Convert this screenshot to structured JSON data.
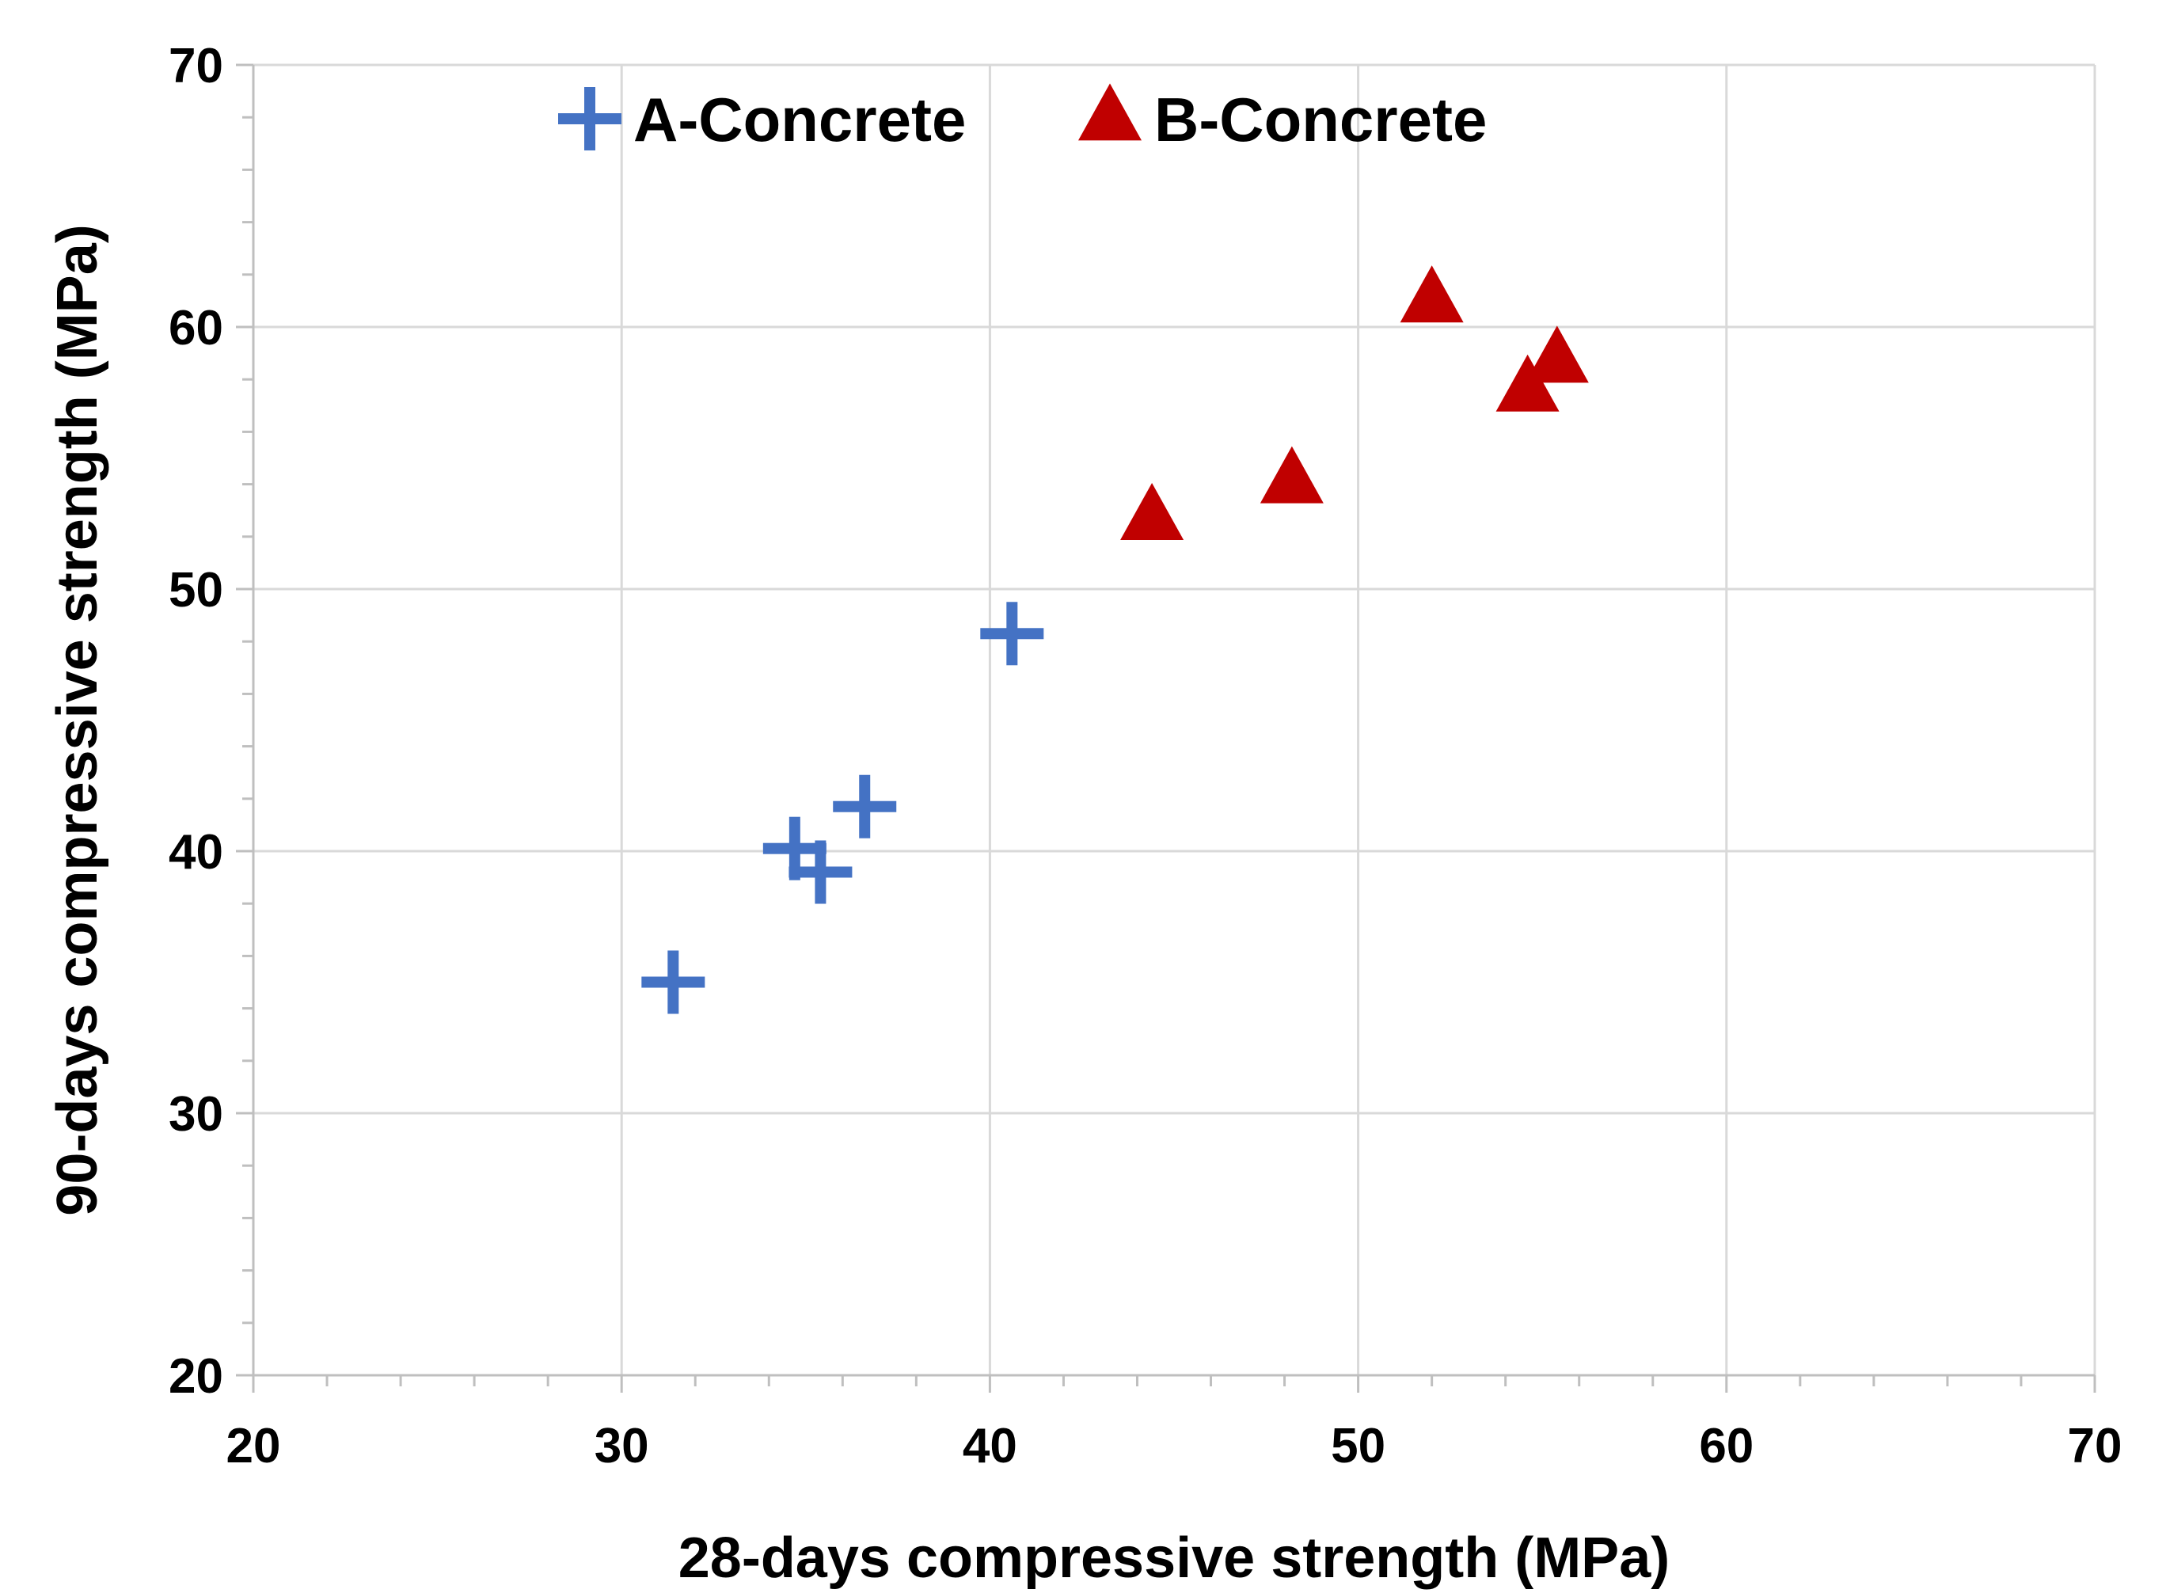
{
  "chart_data": {
    "type": "scatter",
    "xlabel": "28-days compressive strength (MPa)",
    "ylabel": "90-days compressive strength (MPa)",
    "xlim": [
      20,
      70
    ],
    "ylim": [
      20,
      70
    ],
    "x_ticks": [
      "20",
      "30",
      "40",
      "50",
      "60",
      "70"
    ],
    "y_ticks": [
      "20",
      "30",
      "40",
      "50",
      "60",
      "70"
    ],
    "grid": true,
    "legend_position": "top",
    "series": [
      {
        "name": "A-Concrete",
        "marker": "plus",
        "color": "#4472C4",
        "points": [
          {
            "x": 31.4,
            "y": 35.0
          },
          {
            "x": 34.7,
            "y": 40.1
          },
          {
            "x": 35.4,
            "y": 39.2
          },
          {
            "x": 36.6,
            "y": 41.7
          },
          {
            "x": 40.6,
            "y": 48.3
          }
        ]
      },
      {
        "name": "B-Concrete",
        "marker": "triangle",
        "color": "#C00000",
        "points": [
          {
            "x": 44.4,
            "y": 52.7
          },
          {
            "x": 48.2,
            "y": 54.1
          },
          {
            "x": 52.0,
            "y": 61.0
          },
          {
            "x": 54.6,
            "y": 57.6
          },
          {
            "x": 55.4,
            "y": 58.7
          }
        ]
      }
    ]
  }
}
